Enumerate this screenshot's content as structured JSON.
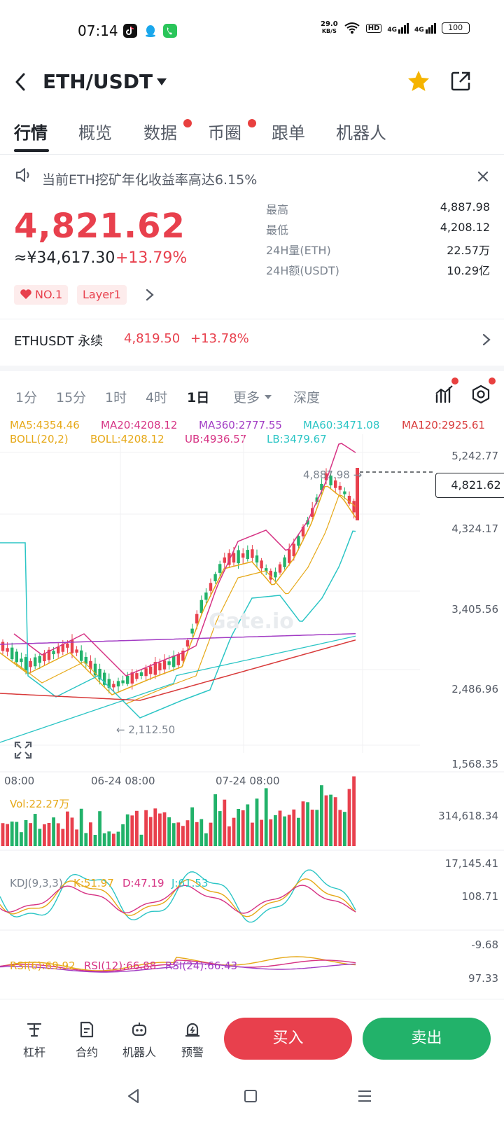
{
  "status_bar": {
    "time": "07:14",
    "net_speed_value": "29.0",
    "net_speed_unit": "KB/S",
    "hd_label": "HD",
    "net_4g_1": "4G",
    "net_4g_2": "4G",
    "battery": "100"
  },
  "header": {
    "pair": "ETH/USDT"
  },
  "tabs": [
    {
      "label": "行情"
    },
    {
      "label": "概览"
    },
    {
      "label": "数据"
    },
    {
      "label": "币圈"
    },
    {
      "label": "跟单"
    },
    {
      "label": "机器人"
    }
  ],
  "notice": {
    "text": "当前ETH挖矿年化收益率高达6.15%"
  },
  "price": {
    "last": "4,821.62",
    "cny": "≈¥34,617.30",
    "change_pct": "+13.79%",
    "badges": [
      {
        "label": "NO.1"
      },
      {
        "label": "Layer1"
      }
    ]
  },
  "stats": [
    {
      "label": "最高",
      "value": "4,887.98"
    },
    {
      "label": "最低",
      "value": "4,208.12"
    },
    {
      "label": "24H量(ETH)",
      "value": "22.57万"
    },
    {
      "label": "24H额(USDT)",
      "value": "10.29亿"
    }
  ],
  "perpetual": {
    "name": "ETHUSDT 永续",
    "price": "4,819.50",
    "change_pct": "+13.78%"
  },
  "timeframes": [
    {
      "label": "1分"
    },
    {
      "label": "15分"
    },
    {
      "label": "1时"
    },
    {
      "label": "4时"
    },
    {
      "label": "1日"
    },
    {
      "label": "更多"
    },
    {
      "label": "深度"
    }
  ],
  "indicators": {
    "ma5": "MA5:4354.46",
    "ma20": "MA20:4208.12",
    "ma360": "MA360:2777.55",
    "ma60": "MA60:3471.08",
    "ma120": "MA120:2925.61",
    "boll": "BOLL(20,2)",
    "boll_val": "BOLL:4208.12",
    "ub": "UB:4936.57",
    "lb": "LB:3479.67"
  },
  "price_axis": [
    "5,242.77",
    "4,324.17",
    "3,405.56",
    "2,486.96",
    "1,568.35"
  ],
  "time_axis": [
    "08:00",
    "06-24 08:00",
    "07-24 08:00"
  ],
  "chart_markers": {
    "high": "4,887.98 →",
    "low": "← 2,112.50",
    "current": "4,821.62"
  },
  "volume": {
    "label": "Vol:22.27万",
    "max": "314,618.34",
    "min": "17,145.41"
  },
  "kdj": {
    "label": "KDJ(9,3,3)",
    "k": "K:51.97",
    "d": "D:47.19",
    "j": "J:61.53",
    "max": "108.71",
    "min": "-9.68"
  },
  "rsi": {
    "rsi6": "RSI(6):69.92",
    "rsi12": "RSI(12):66.88",
    "rsi24": "RSI(24):66.43",
    "max": "97.33"
  },
  "bottom_bar": [
    {
      "label": "杠杆",
      "icon": "leverage-icon"
    },
    {
      "label": "合约",
      "icon": "contract-icon"
    },
    {
      "label": "机器人",
      "icon": "robot-icon"
    },
    {
      "label": "预警",
      "icon": "alert-icon"
    }
  ],
  "actions": {
    "buy": "买入",
    "sell": "卖出"
  },
  "watermark": "Gate.io",
  "colors": {
    "up": "#e8404d",
    "down": "#22b26a",
    "ma5": "#e6a817",
    "ma20": "#d63384",
    "ma360": "#a23cc4",
    "ma60": "#2bc5c5",
    "ma120": "#d83a3a"
  }
}
